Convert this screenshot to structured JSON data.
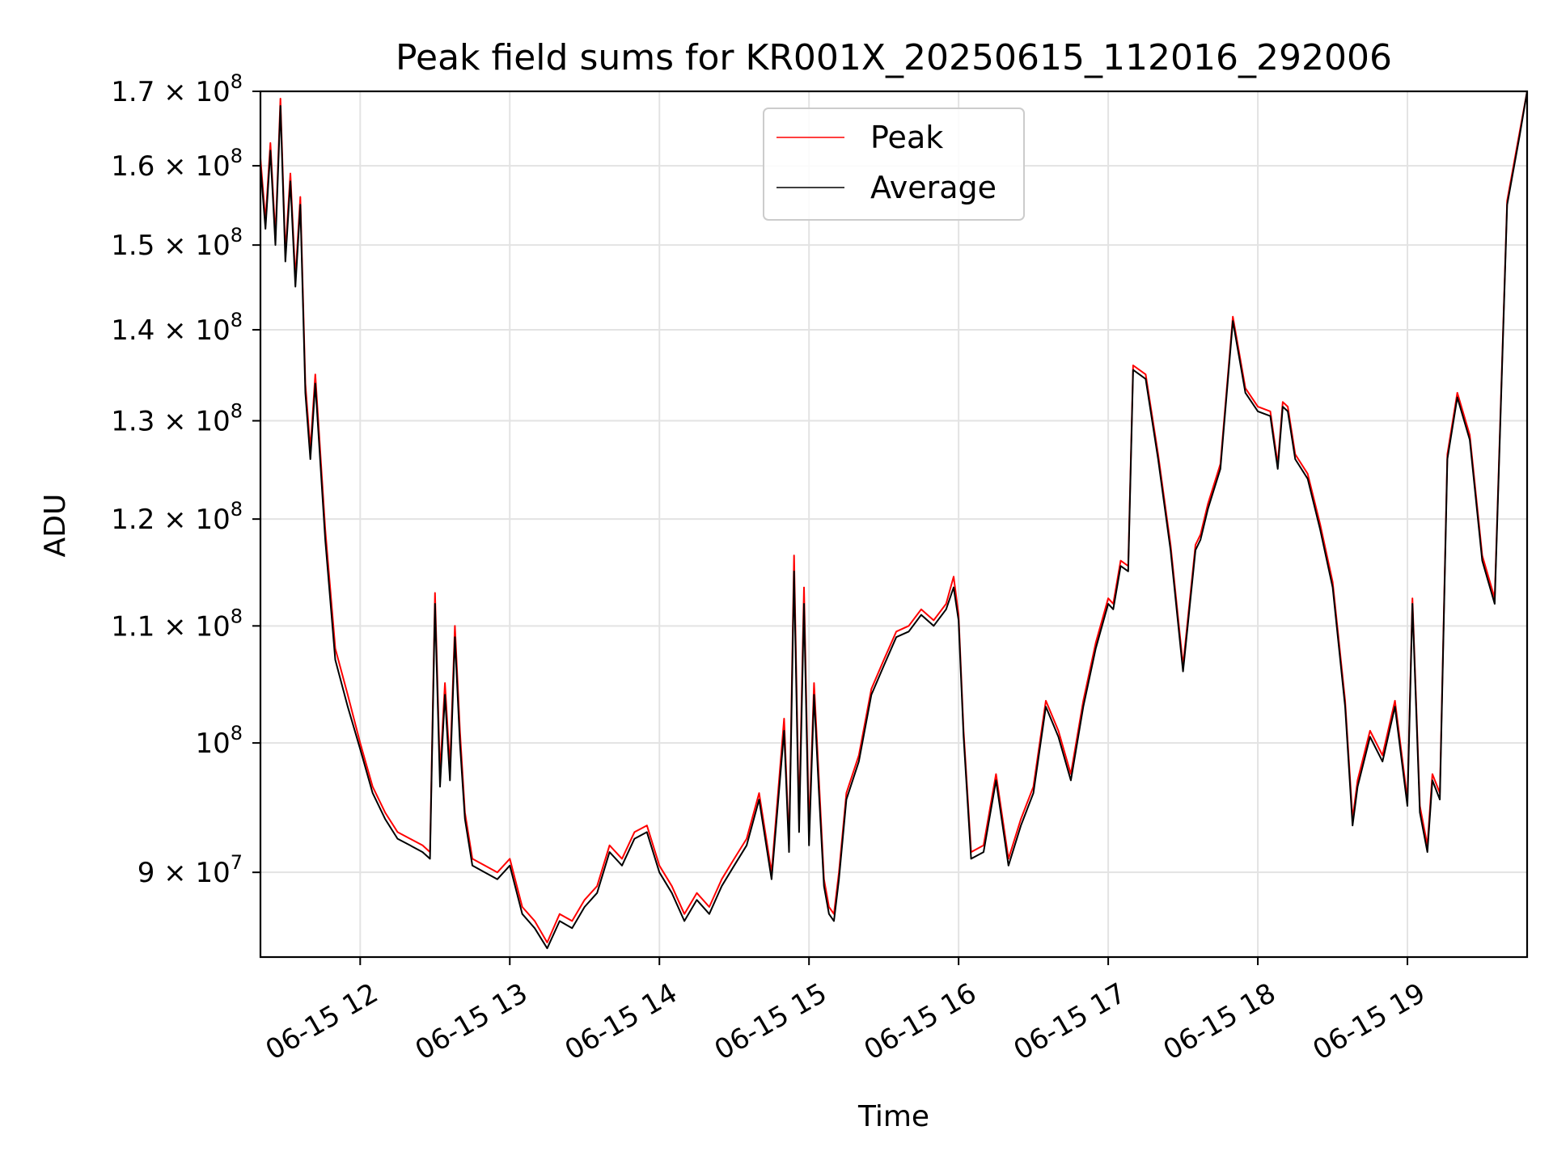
{
  "chart_data": {
    "type": "line",
    "title": "Peak field sums for KR001X_20250615_112016_292006",
    "xlabel": "Time",
    "ylabel": "ADU",
    "yscale": "log",
    "xlim": [
      "2025-06-15 11:20",
      "2025-06-15 19:48"
    ],
    "ylim": [
      84000000,
      170000000
    ],
    "grid": true,
    "legend_position": "top-center",
    "x_tick_labels": [
      "06-15 12",
      "06-15 13",
      "06-15 14",
      "06-15 15",
      "06-15 16",
      "06-15 17",
      "06-15 18",
      "06-15 19"
    ],
    "y_ticks": [
      {
        "value": 90000000,
        "mantissa": "9",
        "exp": "7"
      },
      {
        "value": 100000000,
        "mantissa": "",
        "exp": "8"
      },
      {
        "value": 110000000,
        "mantissa": "1.1",
        "exp": "8"
      },
      {
        "value": 120000000,
        "mantissa": "1.2",
        "exp": "8"
      },
      {
        "value": 130000000,
        "mantissa": "1.3",
        "exp": "8"
      },
      {
        "value": 140000000,
        "mantissa": "1.4",
        "exp": "8"
      },
      {
        "value": 150000000,
        "mantissa": "1.5",
        "exp": "8"
      },
      {
        "value": 160000000,
        "mantissa": "1.6",
        "exp": "8"
      },
      {
        "value": 170000000,
        "mantissa": "1.7",
        "exp": "8"
      }
    ],
    "times": [
      "11:20",
      "11:22",
      "11:24",
      "11:26",
      "11:28",
      "11:30",
      "11:32",
      "11:34",
      "11:36",
      "11:38",
      "11:40",
      "11:42",
      "11:46",
      "11:50",
      "11:55",
      "12:00",
      "12:05",
      "12:10",
      "12:15",
      "12:20",
      "12:25",
      "12:28",
      "12:30",
      "12:32",
      "12:34",
      "12:36",
      "12:38",
      "12:40",
      "12:42",
      "12:45",
      "12:50",
      "12:55",
      "13:00",
      "13:05",
      "13:10",
      "13:15",
      "13:20",
      "13:25",
      "13:30",
      "13:35",
      "13:40",
      "13:45",
      "13:50",
      "13:55",
      "14:00",
      "14:05",
      "14:10",
      "14:15",
      "14:20",
      "14:25",
      "14:30",
      "14:35",
      "14:40",
      "14:45",
      "14:50",
      "14:52",
      "14:54",
      "14:56",
      "14:58",
      "15:00",
      "15:02",
      "15:04",
      "15:06",
      "15:08",
      "15:10",
      "15:12",
      "15:15",
      "15:20",
      "15:25",
      "15:30",
      "15:35",
      "15:40",
      "15:45",
      "15:50",
      "15:55",
      "15:58",
      "16:00",
      "16:02",
      "16:05",
      "16:10",
      "16:15",
      "16:20",
      "16:25",
      "16:30",
      "16:35",
      "16:40",
      "16:45",
      "16:50",
      "16:55",
      "17:00",
      "17:02",
      "17:05",
      "17:08",
      "17:10",
      "17:15",
      "17:20",
      "17:25",
      "17:30",
      "17:35",
      "17:37",
      "17:40",
      "17:45",
      "17:50",
      "17:55",
      "18:00",
      "18:05",
      "18:08",
      "18:10",
      "18:12",
      "18:15",
      "18:20",
      "18:25",
      "18:30",
      "18:35",
      "18:38",
      "18:40",
      "18:45",
      "18:50",
      "18:55",
      "19:00",
      "19:02",
      "19:05",
      "19:08",
      "19:10",
      "19:13",
      "19:16",
      "19:20",
      "19:25",
      "19:30",
      "19:35",
      "19:40",
      "19:45",
      "19:48"
    ],
    "series": [
      {
        "name": "Average",
        "color": "#000000",
        "values": [
          160000000,
          152000000,
          162000000,
          150000000,
          168000000,
          148000000,
          158000000,
          145000000,
          155000000,
          133000000,
          126000000,
          134000000,
          118000000,
          107000000,
          103000000,
          99500000,
          96000000,
          94000000,
          92500000,
          92000000,
          91500000,
          91000000,
          112000000,
          96500000,
          104000000,
          97000000,
          109000000,
          100000000,
          94000000,
          90500000,
          90000000,
          89500000,
          90500000,
          87000000,
          86000000,
          84600000,
          86500000,
          86000000,
          87500000,
          88500000,
          91500000,
          90500000,
          92500000,
          93000000,
          90000000,
          88500000,
          86500000,
          88000000,
          87000000,
          89000000,
          90500000,
          92000000,
          95500000,
          89500000,
          101000000,
          91500000,
          115000000,
          93000000,
          112000000,
          92000000,
          104000000,
          96000000,
          89000000,
          87000000,
          86500000,
          89500000,
          95500000,
          98500000,
          104000000,
          106500000,
          109000000,
          109500000,
          111000000,
          110000000,
          111500000,
          113500000,
          110500000,
          100500000,
          91000000,
          91500000,
          97000000,
          90500000,
          93500000,
          96000000,
          103000000,
          100500000,
          97000000,
          103000000,
          108000000,
          112000000,
          111500000,
          115500000,
          115000000,
          135500000,
          134500000,
          126000000,
          117000000,
          106000000,
          117000000,
          118000000,
          121000000,
          125000000,
          141000000,
          133000000,
          131000000,
          130500000,
          125000000,
          131500000,
          131000000,
          126000000,
          124000000,
          119000000,
          113500000,
          103000000,
          93500000,
          96500000,
          100500000,
          98500000,
          103000000,
          95000000,
          112000000,
          94500000,
          91500000,
          97000000,
          95500000,
          126000000,
          132500000,
          128000000,
          116000000,
          112000000,
          155000000,
          164000000,
          170000000
        ]
      },
      {
        "name": "Peak",
        "color": "#ff0000",
        "values": [
          161000000,
          153000000,
          163000000,
          151000000,
          169000000,
          149000000,
          159000000,
          146000000,
          156000000,
          134000000,
          127000000,
          135000000,
          119000000,
          108000000,
          104000000,
          100000000,
          96500000,
          94500000,
          93000000,
          92500000,
          92000000,
          91500000,
          113000000,
          97500000,
          105000000,
          98000000,
          110000000,
          101000000,
          94500000,
          91000000,
          90500000,
          90000000,
          91000000,
          87500000,
          86500000,
          85000000,
          87000000,
          86500000,
          88000000,
          89000000,
          92000000,
          91000000,
          93000000,
          93500000,
          90500000,
          89000000,
          87000000,
          88500000,
          87500000,
          89500000,
          91000000,
          92500000,
          96000000,
          90000000,
          102000000,
          92000000,
          116500000,
          94000000,
          113500000,
          93000000,
          105000000,
          97000000,
          89500000,
          87500000,
          87000000,
          90000000,
          96000000,
          99000000,
          104500000,
          107000000,
          109500000,
          110000000,
          111500000,
          110500000,
          112000000,
          114500000,
          111000000,
          101000000,
          91500000,
          92000000,
          97500000,
          91000000,
          94000000,
          96500000,
          103500000,
          101000000,
          97500000,
          103500000,
          108500000,
          112500000,
          112000000,
          116000000,
          115500000,
          136000000,
          135000000,
          126500000,
          117500000,
          106500000,
          117500000,
          118500000,
          121500000,
          125500000,
          141500000,
          133500000,
          131500000,
          131000000,
          125500000,
          132000000,
          131500000,
          126500000,
          124500000,
          119500000,
          114000000,
          103500000,
          94000000,
          97000000,
          101000000,
          99000000,
          103500000,
          95500000,
          112500000,
          95000000,
          92000000,
          97500000,
          96000000,
          126500000,
          133000000,
          128500000,
          116500000,
          112500000,
          155500000,
          164500000,
          170000000
        ]
      }
    ]
  }
}
